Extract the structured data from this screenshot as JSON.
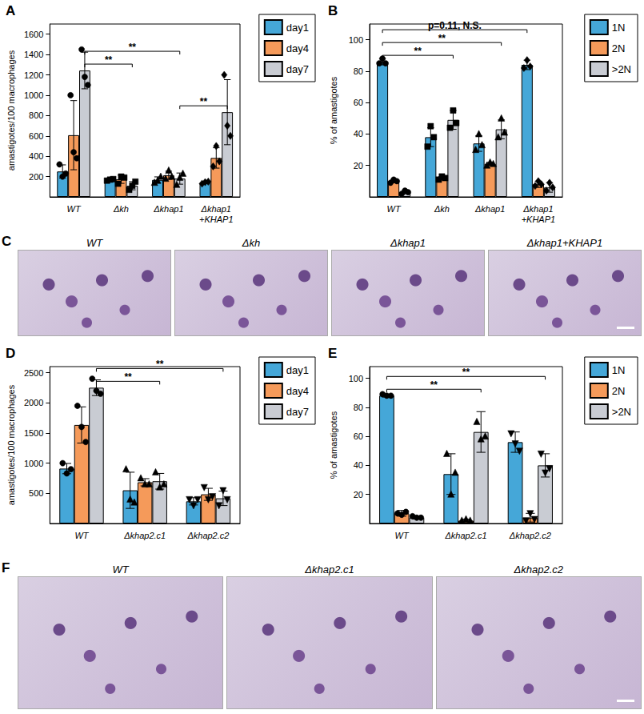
{
  "chart_data": [
    {
      "panel": "A",
      "type": "bar",
      "categories": [
        "WT",
        "Δkh",
        "Δkhap1",
        "Δkhap1\n+KHAP1"
      ],
      "marker": [
        "circle",
        "square",
        "triangle",
        "diamond"
      ],
      "series": [
        {
          "name": "day1",
          "color": "#45a7d8",
          "values": [
            250,
            168,
            167,
            142
          ],
          "errors": [
            65,
            8,
            30,
            10
          ],
          "points": [
            [
              320,
              200,
              230
            ],
            [
              160,
              170,
              175
            ],
            [
              140,
              160,
              200
            ],
            [
              130,
              145,
              150
            ]
          ]
        },
        {
          "name": "day4",
          "color": "#f59a5a",
          "values": [
            607,
            173,
            213,
            383
          ],
          "errors": [
            340,
            40,
            40,
            100
          ],
          "points": [
            [
              1000,
              440,
              380
            ],
            [
              130,
              200,
              190
            ],
            [
              180,
              260,
              200
            ],
            [
              300,
              500,
              350
            ]
          ]
        },
        {
          "name": "day7",
          "color": "#c9ccd3",
          "values": [
            1243,
            110,
            180,
            833
          ],
          "errors": [
            180,
            40,
            55,
            320
          ],
          "points": [
            [
              1450,
              1180,
              1100
            ],
            [
              70,
              110,
              150
            ],
            [
              120,
              190,
              230
            ],
            [
              1200,
              700,
              600
            ]
          ]
        }
      ],
      "y_label": "amastigotes/100 macrophages",
      "ylim": [
        0,
        1700
      ],
      "yticks": [
        200,
        400,
        600,
        800,
        1000,
        1200,
        1400,
        1600
      ],
      "grid": false,
      "legend": "right",
      "annotations": [
        {
          "text": "**",
          "from": {
            "category": "WT",
            "series": "day7"
          },
          "to": {
            "category": "Δkh",
            "series": "day7"
          }
        },
        {
          "text": "**",
          "from": {
            "category": "WT",
            "series": "day7"
          },
          "to": {
            "category": "Δkhap1",
            "series": "day7"
          }
        },
        {
          "text": "**",
          "from": {
            "category": "Δkhap1",
            "series": "day7"
          },
          "to": {
            "category": "Δkhap1\n+KHAP1",
            "series": "day7"
          }
        }
      ]
    },
    {
      "panel": "B",
      "type": "bar",
      "categories": [
        "WT",
        "Δkh",
        "Δkhap1",
        "Δkhap1\n+KHAP1"
      ],
      "marker": [
        "circle",
        "square",
        "triangle",
        "diamond"
      ],
      "series": [
        {
          "name": "1N",
          "color": "#45a7d8",
          "values": [
            86,
            38,
            34,
            84
          ],
          "errors": [
            2,
            6,
            5,
            3
          ],
          "points": [
            [
              85,
              88,
              85
            ],
            [
              32,
              45,
              38
            ],
            [
              30,
              40,
              33
            ],
            [
              82,
              87,
              83
            ]
          ]
        },
        {
          "name": "2N",
          "color": "#f59a5a",
          "values": [
            10,
            12,
            21,
            8
          ],
          "errors": [
            1,
            1,
            1,
            2
          ],
          "points": [
            [
              9,
              11,
              10
            ],
            [
              11,
              13,
              12
            ],
            [
              20,
              22,
              21
            ],
            [
              7,
              10,
              8
            ]
          ]
        },
        {
          "name": ">2N",
          "color": "#c9ccd3",
          "values": [
            3,
            49,
            43,
            6
          ],
          "errors": [
            1,
            6,
            6,
            3
          ],
          "points": [
            [
              2,
              4,
              3
            ],
            [
              44,
              55,
              47
            ],
            [
              38,
              50,
              41
            ],
            [
              4,
              9,
              6
            ]
          ]
        }
      ],
      "y_label": "% of amastigotes",
      "ylim": [
        0,
        110
      ],
      "yticks": [
        20,
        40,
        60,
        80,
        100
      ],
      "grid": false,
      "legend": "right",
      "annotations": [
        {
          "text": "**",
          "from": {
            "category": "WT",
            "series": "1N"
          },
          "to": {
            "category": "Δkh",
            "series": ">2N"
          }
        },
        {
          "text": "**",
          "from": {
            "category": "WT",
            "series": "1N"
          },
          "to": {
            "category": "Δkhap1",
            "series": ">2N"
          }
        },
        {
          "text": "p=0.11, N.S.",
          "from": {
            "category": "WT",
            "series": "1N"
          },
          "to": {
            "category": "Δkhap1\n+KHAP1",
            "series": "1N"
          }
        }
      ]
    },
    {
      "panel": "D",
      "type": "bar",
      "categories": [
        "WT",
        "Δkhap2.c1",
        "Δkhap2.c2"
      ],
      "marker": [
        "circle",
        "triangle",
        "triangle_down"
      ],
      "series": [
        {
          "name": "day1",
          "color": "#45a7d8",
          "values": [
            910,
            550,
            367
          ],
          "errors": [
            85,
            300,
            60
          ],
          "points": [
            [
              1000,
              830,
              900
            ],
            [
              900,
              400,
              350
            ],
            [
              400,
              300,
              400
            ]
          ]
        },
        {
          "name": "day4",
          "color": "#f59a5a",
          "values": [
            1633,
            683,
            483
          ],
          "errors": [
            300,
            60,
            100
          ],
          "points": [
            [
              1950,
              1600,
              1350
            ],
            [
              750,
              650,
              650
            ],
            [
              600,
              400,
              450
            ]
          ]
        },
        {
          "name": "day7",
          "color": "#c9ccd3",
          "values": [
            2250,
            700,
            417
          ],
          "errors": [
            130,
            130,
            120
          ],
          "points": [
            [
              2400,
              2200,
              2150
            ],
            [
              850,
              600,
              650
            ],
            [
              300,
              550,
              400
            ]
          ]
        }
      ],
      "y_label": "amastigotes/100 macrophages",
      "ylim": [
        0,
        2600
      ],
      "yticks": [
        500,
        1000,
        1500,
        2000,
        2500
      ],
      "grid": false,
      "legend": "right",
      "annotations": [
        {
          "text": "**",
          "from": {
            "category": "WT",
            "series": "day7"
          },
          "to": {
            "category": "Δkhap2.c1",
            "series": "day7"
          }
        },
        {
          "text": "**",
          "from": {
            "category": "WT",
            "series": "day7"
          },
          "to": {
            "category": "Δkhap2.c2",
            "series": "day7"
          }
        }
      ]
    },
    {
      "panel": "E",
      "type": "bar",
      "categories": [
        "WT",
        "Δkhap2.c1",
        "Δkhap2.c2"
      ],
      "marker": [
        "circle",
        "triangle",
        "triangle_down"
      ],
      "series": [
        {
          "name": "1N",
          "color": "#45a7d8",
          "values": [
            88,
            34,
            56
          ],
          "errors": [
            1,
            14,
            7
          ],
          "points": [
            [
              89,
              88,
              88
            ],
            [
              48,
              20,
              35
            ],
            [
              62,
              55,
              50
            ]
          ]
        },
        {
          "name": "2N",
          "color": "#f59a5a",
          "values": [
            7,
            2,
            4
          ],
          "errors": [
            2,
            1,
            3
          ],
          "points": [
            [
              7,
              6,
              8
            ],
            [
              2,
              3,
              2
            ],
            [
              2,
              7,
              3
            ]
          ]
        },
        {
          "name": ">2N",
          "color": "#c9ccd3",
          "values": [
            4,
            63,
            40
          ],
          "errors": [
            1,
            14,
            8
          ],
          "points": [
            [
              5,
              4,
              4
            ],
            [
              70,
              58,
              60
            ],
            [
              48,
              35,
              38
            ]
          ]
        }
      ],
      "y_label": "% of amastigotes",
      "ylim": [
        0,
        108
      ],
      "yticks": [
        20,
        40,
        60,
        80,
        100
      ],
      "grid": false,
      "legend": "right",
      "annotations": [
        {
          "text": "**",
          "from": {
            "category": "WT",
            "series": "1N"
          },
          "to": {
            "category": "Δkhap2.c1",
            "series": ">2N"
          }
        },
        {
          "text": "**",
          "from": {
            "category": "WT",
            "series": "1N"
          },
          "to": {
            "category": "Δkhap2.c2",
            "series": ">2N"
          }
        }
      ]
    }
  ],
  "images": [
    {
      "panel": "C",
      "labels": [
        "WT",
        "Δkh",
        "Δkhap1",
        "Δkhap1+KHAP1"
      ]
    },
    {
      "panel": "F",
      "labels": [
        "WT",
        "Δkhap2.c1",
        "Δkhap2.c2"
      ]
    }
  ]
}
